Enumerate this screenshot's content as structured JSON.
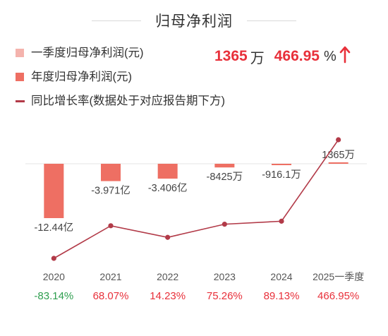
{
  "title": "归母净利润",
  "legend": [
    {
      "label": "一季度归母净利润(元)",
      "color": "#f4b3ad",
      "kind": "swatch"
    },
    {
      "label": "年度归母净利润(元)",
      "color": "#ee6f63",
      "kind": "swatch"
    },
    {
      "label": "同比增长率(数据处于对应报告期下方)",
      "color": "#b23a48",
      "kind": "line"
    }
  ],
  "kpi": {
    "value": "1365",
    "unit": "万",
    "pct": "466.95",
    "pct_symbol": "%",
    "value_color": "#e8303a",
    "direction": "up"
  },
  "chart_data": {
    "type": "bar",
    "categories": [
      "2020",
      "2021",
      "2022",
      "2023",
      "2024",
      "2025一季度"
    ],
    "series": [
      {
        "name": "年度归母净利润(元)",
        "values": [
          -124400,
          -39710,
          -34060,
          -8425,
          -916.1,
          1365
        ],
        "unit": "万",
        "labels": [
          "-12.44亿",
          "-3.971亿",
          "-3.406亿",
          "-8425万",
          "-916.1万",
          "1365万"
        ],
        "color": "#ee6f63"
      },
      {
        "name": "同比增长率(数据处于对应报告期下方)",
        "type": "line",
        "values": [
          -83.14,
          68.07,
          14.23,
          75.26,
          89.13,
          466.95
        ],
        "labels": [
          "-83.14%",
          "68.07%",
          "14.23%",
          "75.26%",
          "89.13%",
          "466.95%"
        ],
        "color": "#b23a48"
      }
    ],
    "colors": {
      "positive": "#e8303a",
      "negative": "#2e9e4f",
      "bar": "#ee6f63",
      "line": "#b23a48"
    }
  }
}
